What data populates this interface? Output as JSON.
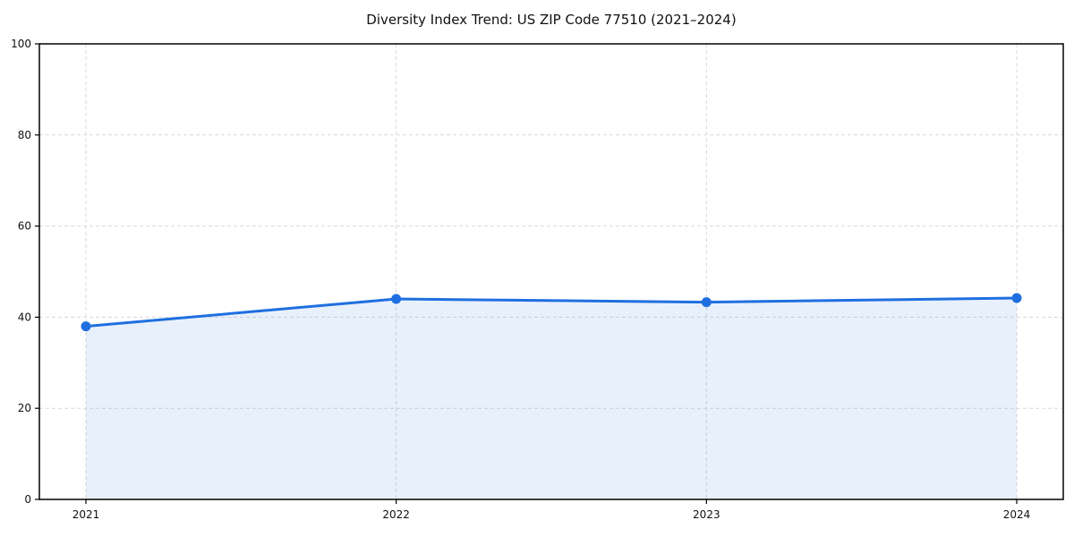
{
  "title": "Diversity Index Trend: US ZIP Code 77510 (2021–2024)",
  "chart_data": {
    "type": "line",
    "title": "Diversity Index Trend: US ZIP Code 77510 (2021–2024)",
    "x": [
      "2021",
      "2022",
      "2023",
      "2024"
    ],
    "series": [
      {
        "name": "Diversity Index",
        "values": [
          38,
          44,
          43.3,
          44.2
        ],
        "color": "#1f6fe0",
        "marker": "circle",
        "area_fill": true,
        "area_fill_color": "rgba(31,111,224,0.10)"
      }
    ],
    "xlabel": "",
    "ylabel": "",
    "ylim": [
      0,
      100
    ],
    "yticks": [
      0,
      20,
      40,
      60,
      80,
      100
    ],
    "grid": "dashed",
    "grid_color": "#d9d9d9",
    "frame_color": "#000000",
    "legend": "none",
    "background_color": "#ffffff"
  }
}
